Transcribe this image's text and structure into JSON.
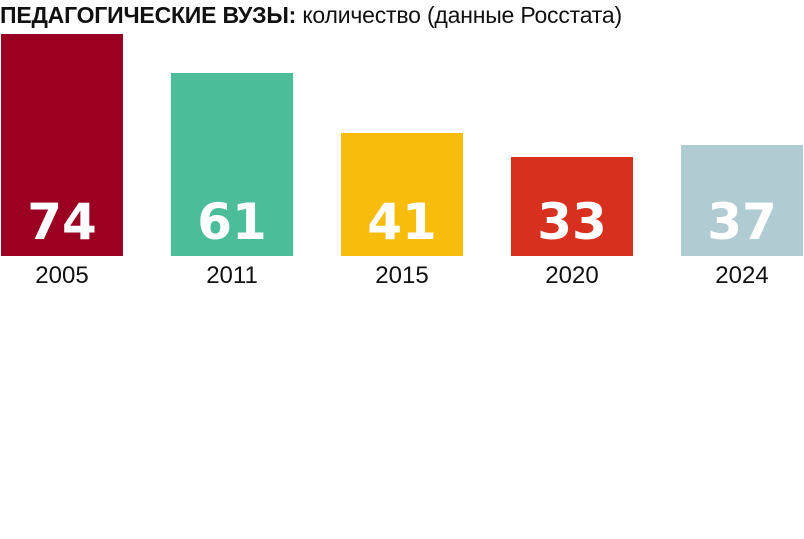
{
  "chart_data": {
    "type": "bar",
    "title": "ПЕДАГОГИЧЕСКИЕ ВУЗЫ:",
    "subtitle": "количество (данные Росстата)",
    "categories": [
      "2005",
      "2011",
      "2015",
      "2020",
      "2024"
    ],
    "values": [
      74,
      61,
      41,
      33,
      37
    ],
    "colors": [
      "#9b0022",
      "#4bbd9a",
      "#f7bc0c",
      "#d8301e",
      "#b1cbd2"
    ],
    "ylim": [
      0,
      74
    ],
    "grid": false,
    "legend": "none",
    "xlabel": "",
    "ylabel": ""
  }
}
